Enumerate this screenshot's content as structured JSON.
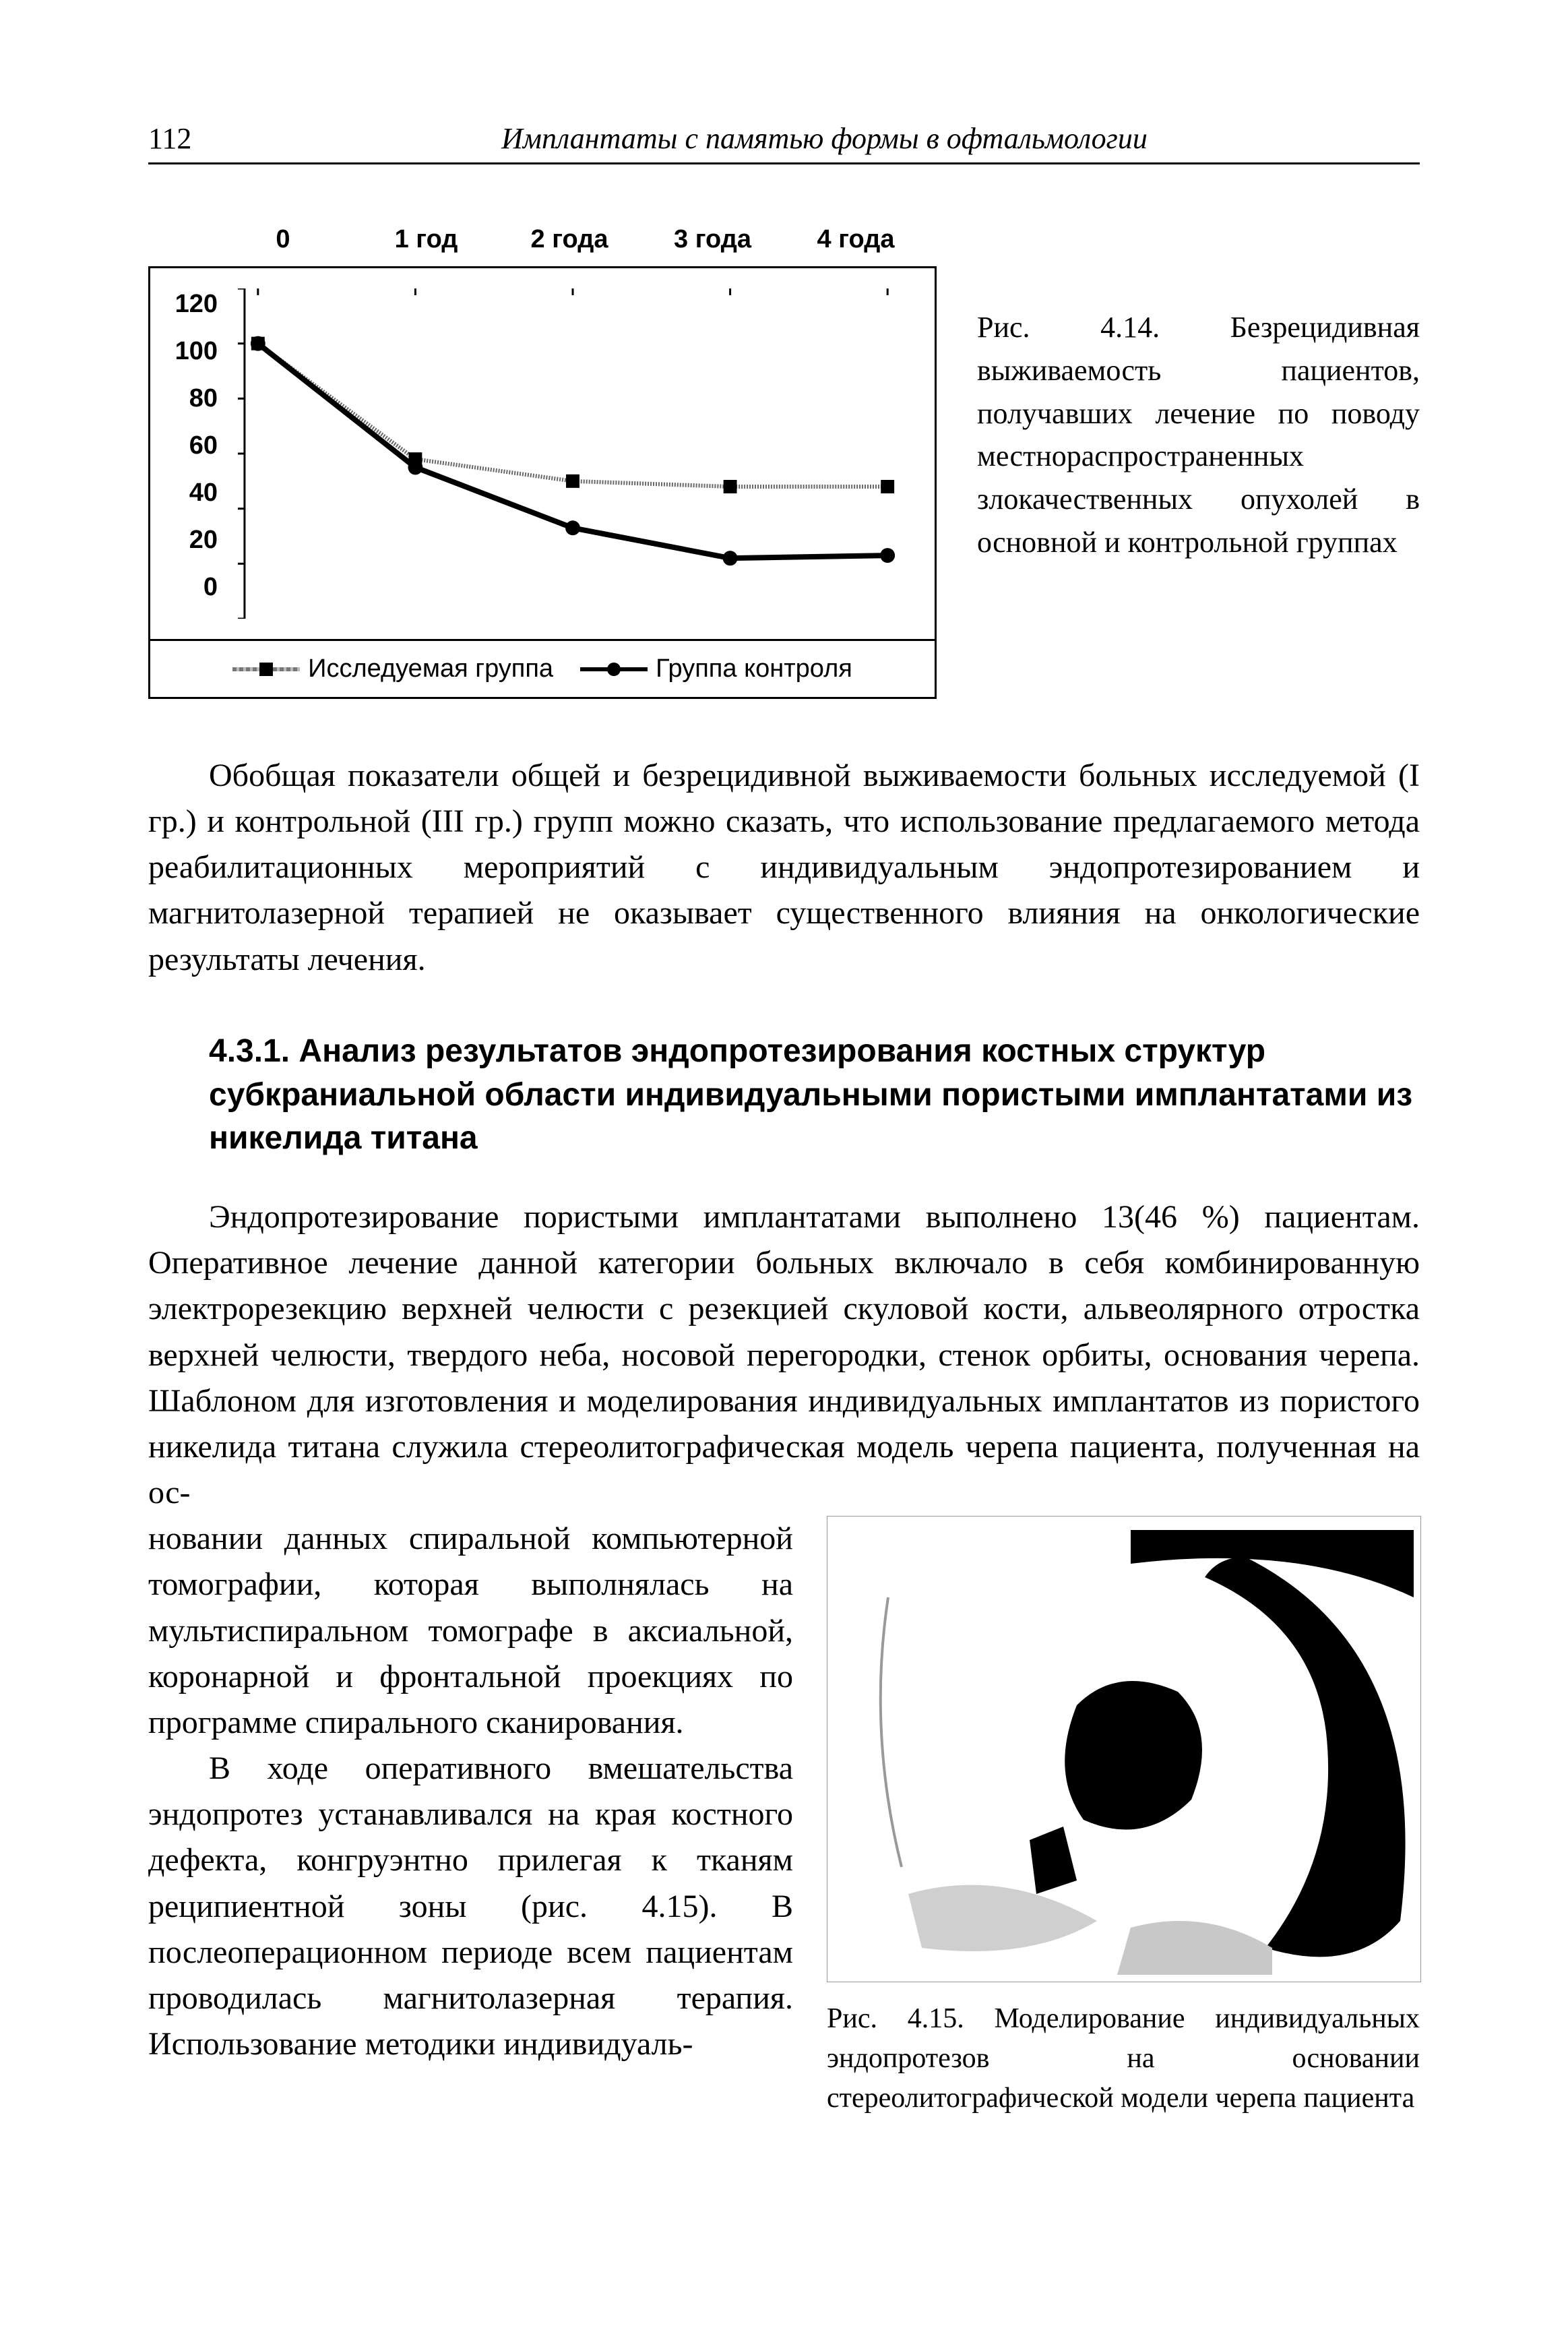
{
  "page_number": "112",
  "running_title": "Имплантаты с памятью формы в офтальмологии",
  "chart": {
    "type": "line",
    "x_categories": [
      "0",
      "1 год",
      "2 года",
      "3 года",
      "4 года"
    ],
    "x_positions": [
      0,
      1,
      2,
      3,
      4
    ],
    "y_ticks": [
      "120",
      "100",
      "80",
      "60",
      "40",
      "20",
      "0"
    ],
    "ylim": [
      0,
      120
    ],
    "ytick_step": 20,
    "series": [
      {
        "name": "Исследуемая группа",
        "marker": "square",
        "line_color": "#666666",
        "line_width": 6,
        "values": [
          100,
          58,
          50,
          48,
          48
        ]
      },
      {
        "name": "Группа контроля",
        "marker": "circle",
        "line_color": "#000000",
        "line_width": 8,
        "values": [
          100,
          55,
          33,
          22,
          23
        ]
      }
    ],
    "legend": {
      "item1": "Исследуемая группа",
      "item2": "Группа контроля"
    },
    "axis_fontsize": 38,
    "axis_fontweight": "bold",
    "background_color": "#ffffff",
    "border_color": "#000000"
  },
  "caption_414": "Рис. 4.14. Безрецидивная выживаемость пациентов, получавших лечение по поводу местнораспространенных злокачественных опухолей в основной и контрольной группах",
  "para1": "Обобщая показатели общей и безрецидивной выживаемости больных исследуемой (I гр.) и контрольной (III гр.) групп можно сказать, что использование предлагаемого метода реабилитационных мероприятий с индивидуальным эндопротезированием и магнитолазерной терапией не оказывает существенного влияния на онкологические результаты лечения.",
  "heading_431": "4.3.1. Анализ результатов эндопротезирования костных структур субкраниальной области индивидуальными пористыми имплантатами из никелида титана",
  "para2": "Эндопротезирование пористыми имплантатами выполнено 13(46 %) пациентам. Оперативное лечение данной категории больных включало в себя комбинированную электрорезекцию верхней челюсти с резекцией скуловой кости, альвеолярного отростка верхней челюсти, твердого неба, носовой перегородки, стенок орбиты, основания черепа. Шаблоном для изготовления и моделирования индивидуальных имплантатов из пористого никелида титана служила стереолитографическая модель черепа пациента, полученная на ос-",
  "para3": "новании данных спиральной компьютерной томографии, которая выполнялась на мультиспиральном томографе в аксиальной, коронарной и фронтальной проекциях по программе спирального сканирования.",
  "para4": "В ходе оперативного вмешательства эндопротез устанавливался на края костного дефекта, конгруэнтно прилегая к тканям реципиентной зоны (рис. 4.15). В послеоперационном периоде всем пациентам проводилась магнитолазерная терапия. Использование методики индивидуаль-",
  "caption_415": "Рис. 4.15. Моделирование индивидуальных эндопротезов на основании стереолитографической модели черепа пациента"
}
